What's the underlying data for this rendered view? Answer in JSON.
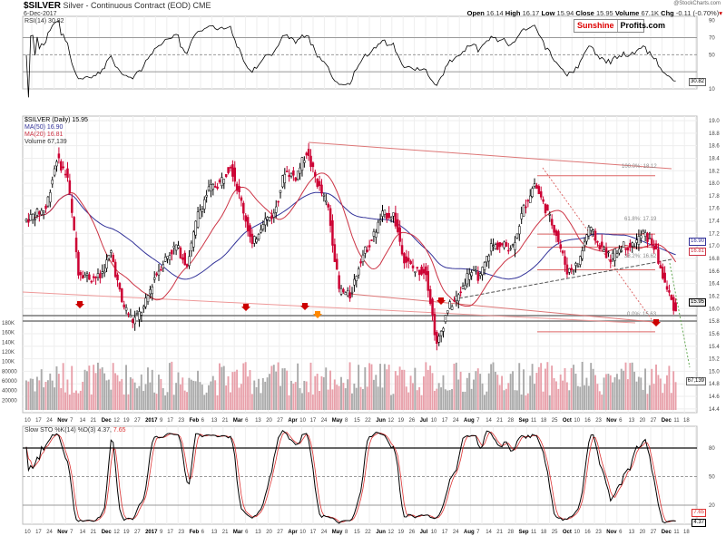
{
  "header": {
    "symbol": "$SILVER",
    "name": "Silver - Continuous Contract (EOD) CME",
    "date": "6-Dec-2017",
    "credit": "@StockCharts.com",
    "open_label": "Open",
    "open": "16.14",
    "high_label": "High",
    "high": "16.17",
    "low_label": "Low",
    "low": "15.94",
    "close_label": "Close",
    "close": "15.95",
    "volume_label": "Volume",
    "volume": "67.1K",
    "chg_label": "Chg",
    "chg": "-0.11 (-0.70%)"
  },
  "logo": {
    "part1": "Sunshine",
    "part2": "Profits.com"
  },
  "legend": {
    "rsi": "RSI(14) 30.82",
    "price": "$SILVER (Daily) 15.95",
    "ma50": "MA(50) 16.90",
    "ma20": "MA(20) 16.81",
    "volume": "Volume 67,139",
    "sto": "Slow STO %K(14) %D(3) 4.37,",
    "sto_d": "7.65"
  },
  "axis_boxes": {
    "rsi": "30.82",
    "ma50": "16.90",
    "ma20": "16.81",
    "close": "15.95",
    "volume": "67,139",
    "sto_k": "4.37",
    "sto_d": "7.65"
  },
  "fib": {
    "f100": "100.0%: 18.12",
    "f618": "61.8%: 17.19",
    "f382": "38.2%: 16.62",
    "f0": "0.0%: 15.63"
  },
  "colors": {
    "up": "#ffffff",
    "down": "#cc0033",
    "ma50": "#333399",
    "ma20": "#cc3344",
    "vol_up": "#aaaaaa",
    "vol_down": "#e8a0aa"
  },
  "chart_data": {
    "type": "candlestick",
    "title": "$SILVER Silver - Continuous Contract (EOD) CME",
    "ylim": [
      14.3,
      19.1
    ],
    "yticks": [
      "19.0",
      "18.8",
      "18.6",
      "18.4",
      "18.2",
      "18.0",
      "17.8",
      "17.6",
      "17.4",
      "17.2",
      "17.0",
      "16.8",
      "16.6",
      "16.4",
      "16.2",
      "16.0",
      "15.8",
      "15.6",
      "15.4",
      "15.2",
      "15.0",
      "14.8",
      "14.6",
      "14.4"
    ],
    "rsi_ticks": [
      "90",
      "70",
      "50",
      "10"
    ],
    "vol_ticks": [
      "180K",
      "160K",
      "140K",
      "120K",
      "100K",
      "80000",
      "60000",
      "40000",
      "20000"
    ],
    "sto_ticks": [
      "80",
      "50",
      "20"
    ],
    "xticks": [
      "10",
      "17",
      "24",
      "Nov",
      "7",
      "14",
      "21",
      "Dec",
      "12",
      "19",
      "27",
      "2017",
      "9",
      "17",
      "23",
      "Feb",
      "6",
      "13",
      "21",
      "Mar",
      "6",
      "13",
      "20",
      "27",
      "Apr",
      "10",
      "17",
      "24",
      "May",
      "8",
      "15",
      "22",
      "Jun",
      "12",
      "19",
      "26",
      "Jul",
      "10",
      "17",
      "24",
      "Aug",
      "7",
      "14",
      "21",
      "28",
      "Sep",
      "11",
      "18",
      "25",
      "Oct",
      "10",
      "16",
      "23",
      "Nov",
      "6",
      "13",
      "20",
      "27",
      "Dec",
      "11",
      "18"
    ],
    "weekly_close": [
      17.4,
      17.5,
      17.6,
      18.4,
      18.1,
      16.6,
      16.5,
      16.5,
      16.9,
      16.1,
      15.8,
      16.0,
      16.5,
      16.8,
      17.0,
      16.7,
      17.5,
      17.9,
      18.0,
      18.3,
      17.7,
      17.0,
      17.4,
      17.5,
      18.2,
      18.1,
      18.5,
      18.0,
      17.6,
      16.3,
      16.2,
      16.8,
      17.1,
      17.5,
      17.5,
      16.8,
      16.6,
      16.6,
      15.4,
      16.0,
      16.2,
      16.6,
      16.5,
      17.0,
      17.0,
      17.0,
      17.6,
      18.0,
      17.6,
      17.2,
      16.6,
      16.7,
      17.3,
      17.0,
      16.8,
      17.0,
      17.0,
      17.2,
      17.0,
      16.4,
      15.95
    ]
  }
}
